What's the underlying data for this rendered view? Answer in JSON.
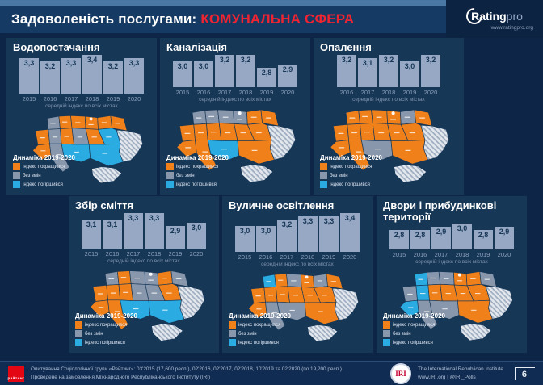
{
  "header": {
    "title_prefix": "Задоволеність послугами: ",
    "title_highlight": "КОМУНАЛЬНА СФЕРА",
    "logo": {
      "brand": "Rating",
      "brand_suffix": "pro",
      "site": "www.ratingpro.org"
    }
  },
  "caption": "середній індекс по всіх містах",
  "legend": {
    "title": "Динаміка 2019-2020",
    "items": [
      {
        "state": "improved",
        "color": "#f08019",
        "label": "індекс покращився"
      },
      {
        "state": "same",
        "color": "#8897ac",
        "label": "без змін"
      },
      {
        "state": "worse",
        "color": "#2aace2",
        "label": "індекс погіршився"
      }
    ],
    "nodata_fill": "#e3e8ee",
    "nodata_stripe": "#9fadc0"
  },
  "panels": [
    {
      "title": "Водопостачання",
      "map_states": {
        "volyn": "same",
        "rivne": "improved",
        "zhytomyr": "improved",
        "kyiv": "improved",
        "chernihiv": "improved",
        "sumy": "improved",
        "lviv": "improved",
        "ternopil": "same",
        "vinnytsia": "improved",
        "cherkasy": "same",
        "poltava": "improved",
        "kharkiv": "worse",
        "carpathia": "improved",
        "odesa": "same",
        "kherson": "worse",
        "dnipro": "worse"
      }
    },
    {
      "title": "Каналізація",
      "map_states": {
        "volyn": "same",
        "rivne": "same",
        "zhytomyr": "same",
        "kyiv": "same",
        "chernihiv": "improved",
        "sumy": "improved",
        "lviv": "improved",
        "ternopil": "improved",
        "vinnytsia": "improved",
        "cherkasy": "improved",
        "poltava": "improved",
        "kharkiv": "improved",
        "carpathia": "improved",
        "odesa": "improved",
        "kherson": "worse",
        "dnipro": "improved"
      }
    },
    {
      "title": "Опалення",
      "map_states": {
        "volyn": "improved",
        "rivne": "improved",
        "zhytomyr": "improved",
        "kyiv": "improved",
        "chernihiv": "same",
        "sumy": "improved",
        "lviv": "improved",
        "ternopil": "improved",
        "vinnytsia": "improved",
        "cherkasy": "improved",
        "poltava": "improved",
        "kharkiv": "improved",
        "carpathia": "improved",
        "odesa": "improved",
        "kherson": "same",
        "dnipro": "improved"
      }
    },
    {
      "title": "Збір сміття",
      "map_states": {
        "volyn": "same",
        "rivne": "improved",
        "zhytomyr": "same",
        "kyiv": "same",
        "chernihiv": "improved",
        "sumy": "same",
        "lviv": "improved",
        "ternopil": "improved",
        "vinnytsia": "improved",
        "cherkasy": "same",
        "poltava": "same",
        "kharkiv": "improved",
        "carpathia": "improved",
        "odesa": "improved",
        "kherson": "worse",
        "dnipro": "worse"
      }
    },
    {
      "title": "Вуличне освітлення",
      "map_states": {
        "volyn": "worse",
        "rivne": "improved",
        "zhytomyr": "same",
        "kyiv": "improved",
        "chernihiv": "same",
        "sumy": "improved",
        "lviv": "improved",
        "ternopil": "improved",
        "vinnytsia": "improved",
        "cherkasy": "improved",
        "poltava": "improved",
        "kharkiv": "improved",
        "carpathia": "improved",
        "odesa": "same",
        "kherson": "same",
        "dnipro": "improved"
      }
    },
    {
      "title": "Двори і прибудинкові території",
      "map_states": {
        "volyn": "worse",
        "rivne": "same",
        "zhytomyr": "same",
        "kyiv": "improved",
        "chernihiv": "improved",
        "sumy": "same",
        "lviv": "same",
        "ternopil": "worse",
        "vinnytsia": "improved",
        "cherkasy": "improved",
        "poltava": "improved",
        "kharkiv": "improved",
        "carpathia": "worse",
        "odesa": "same",
        "kherson": "same",
        "dnipro": "improved"
      }
    }
  ],
  "chart_data": [
    {
      "type": "bar",
      "title": "Водопостачання",
      "categories": [
        "2015",
        "2016",
        "2017",
        "2018",
        "2019",
        "2020"
      ],
      "values": [
        3.3,
        3.2,
        3.3,
        3.4,
        3.2,
        3.3
      ],
      "note": "середній індекс по всіх містах"
    },
    {
      "type": "bar",
      "title": "Каналізація",
      "categories": [
        "2015",
        "2016",
        "2017",
        "2018",
        "2019",
        "2020"
      ],
      "values": [
        3.0,
        3.0,
        3.2,
        3.2,
        2.8,
        2.9
      ],
      "note": "середній індекс по всіх містах"
    },
    {
      "type": "bar",
      "title": "Опалення",
      "categories": [
        "2016",
        "2017",
        "2018",
        "2019",
        "2020"
      ],
      "values": [
        3.2,
        3.1,
        3.2,
        3.0,
        3.2
      ],
      "note": "середній індекс по всіх містах"
    },
    {
      "type": "bar",
      "title": "Збір сміття",
      "categories": [
        "2015",
        "2016",
        "2017",
        "2018",
        "2019",
        "2020"
      ],
      "values": [
        3.1,
        3.1,
        3.3,
        3.3,
        2.9,
        3.0
      ],
      "note": "середній індекс по всіх містах"
    },
    {
      "type": "bar",
      "title": "Вуличне освітлення",
      "categories": [
        "2015",
        "2016",
        "2017",
        "2018",
        "2019",
        "2020"
      ],
      "values": [
        3.0,
        3.0,
        3.2,
        3.3,
        3.3,
        3.4
      ],
      "note": "середній індекс по всіх містах"
    },
    {
      "type": "bar",
      "title": "Двори і прибудинкові території",
      "categories": [
        "2015",
        "2016",
        "2017",
        "2018",
        "2019",
        "2020"
      ],
      "values": [
        2.8,
        2.8,
        2.9,
        3.0,
        2.8,
        2.9
      ],
      "note": "середній індекс по всіх містах"
    }
  ],
  "footer": {
    "source_line1": "Опитування Соціологічної групи «Рейтинг»: 03'2015 (17,600 респ.), 02'2016, 02'2017, 02'2018, 10'2019 та 02'2020 (по 19,200 респ.).",
    "source_line2": "Проведене на замовлення Міжнародного Республіканського Інституту (IRI)",
    "rating_logo": "рейтинг",
    "iri_logo": "IRI",
    "iri_name": "The International Republican Institute",
    "iri_contacts": "www.IRI.org | @IRI_Polls",
    "page_number": "6"
  }
}
